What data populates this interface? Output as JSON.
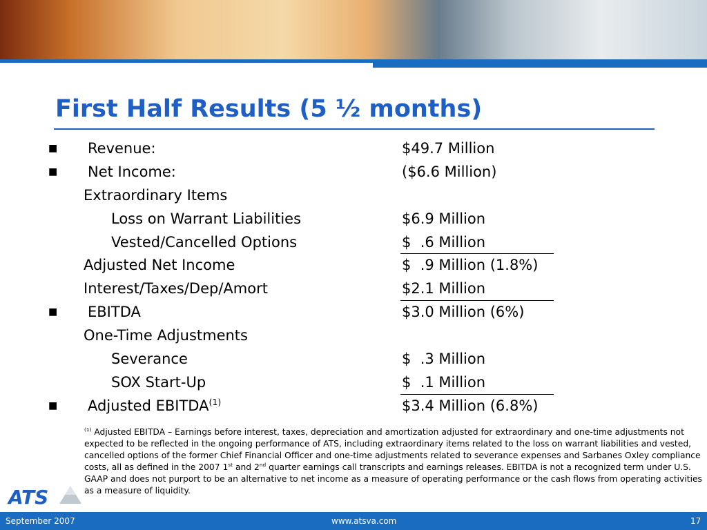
{
  "title": "First Half Results (5 ½ months)",
  "rows": [
    {
      "label": "Revenue:",
      "value": "$49.7 Million"
    },
    {
      "label": "Net Income:",
      "value": "($6.6 Million)"
    },
    {
      "label": "Extraordinary Items"
    },
    {
      "label": "Loss on Warrant Liabilities",
      "value": "$6.9 Million"
    },
    {
      "label": "Vested/Cancelled Options",
      "value": "$  .6 Million"
    },
    {
      "label": "Adjusted Net Income",
      "value": "$  .9 Million (1.8%)"
    },
    {
      "label": "Interest/Taxes/Dep/Amort",
      "value": "$2.1 Million"
    },
    {
      "label": "EBITDA",
      "value": "$3.0 Million (6%)"
    },
    {
      "label": "One-Time Adjustments"
    },
    {
      "label": "Severance",
      "value": "$  .3 Million"
    },
    {
      "label": "SOX Start-Up",
      "value": "$  .1 Million"
    },
    {
      "label": "Adjusted EBITDA",
      "label_sup": "(1)",
      "value": "$3.4 Million (6.8%)"
    }
  ],
  "footnote": {
    "marker": "(1)",
    "text_1": " Adjusted EBITDA – Earnings before interest, taxes, depreciation and amortization adjusted for extraordinary and one-time adjustments not expected to be reflected in the ongoing performance of ATS, including extraordinary items related to the loss on warrant liabilities and vested, cancelled options of the former Chief Financial Officer and one-time adjustments related to severance expenses and Sarbanes Oxley compliance costs, all as defined in the 2007 1",
    "sup_1": "st",
    "text_2": " and 2",
    "sup_2": "nd",
    "text_3": " quarter earnings call transcripts and earnings releases.  EBITDA is not a recognized term under U.S. GAAP and does not purport to be an alternative to net income as a measure of operating performance or the cash flows from operating activities as a measure of liquidity."
  },
  "logo": "ATS",
  "footer": {
    "date": "September 2007",
    "url": "www.atsva.com",
    "page": "17"
  }
}
